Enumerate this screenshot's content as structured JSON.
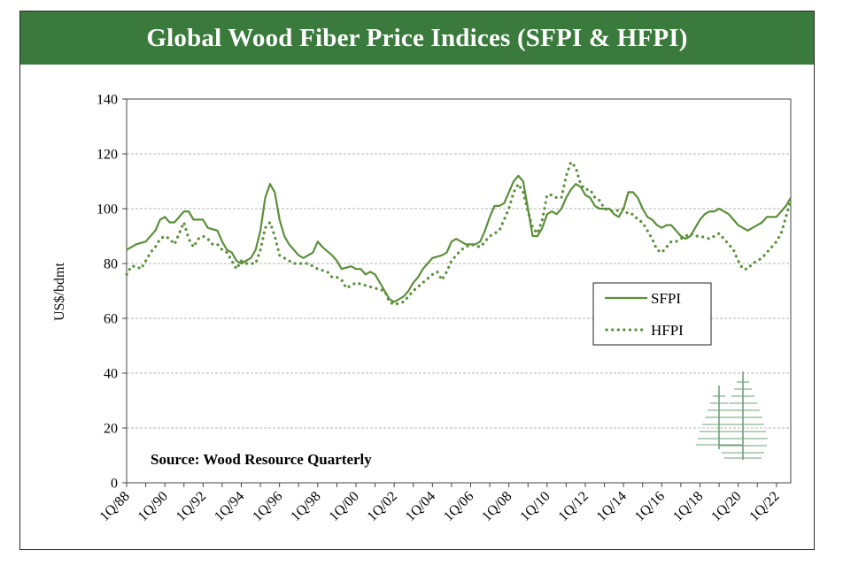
{
  "title": "Global Wood Fiber Price Indices (SFPI & HFPI)",
  "colors": {
    "title_bg": "#3a7a3c",
    "series": "#5b8f3a",
    "grid": "#b5b5b5"
  },
  "icon": "pine-trees-logo",
  "chart_data": {
    "type": "line",
    "ylabel": "US$/bdmt",
    "ylim": [
      0,
      140
    ],
    "yticks": [
      0,
      20,
      40,
      60,
      80,
      100,
      120,
      140
    ],
    "xlim": [
      1988.0,
      2022.75
    ],
    "xtick_labels": [
      "1Q/88",
      "1Q/90",
      "1Q/92",
      "1Q/94",
      "1Q/96",
      "1Q/98",
      "1Q/00",
      "1Q/02",
      "1Q/04",
      "1Q/06",
      "1Q/08",
      "1Q/10",
      "1Q/12",
      "1Q/14",
      "1Q/16",
      "1Q/18",
      "1Q/20",
      "1Q/22"
    ],
    "grid": "horizontal",
    "legend_position": "center-right",
    "annotation": "Source: Wood Resource Quarterly",
    "series": [
      {
        "name": "SFPI",
        "style": "solid",
        "points": [
          [
            1988.0,
            85
          ],
          [
            1988.5,
            87
          ],
          [
            1989.0,
            88
          ],
          [
            1989.5,
            92
          ],
          [
            1989.75,
            96
          ],
          [
            1990.0,
            97
          ],
          [
            1990.25,
            95
          ],
          [
            1990.5,
            95
          ],
          [
            1991.0,
            99
          ],
          [
            1991.25,
            99
          ],
          [
            1991.5,
            96
          ],
          [
            1992.0,
            96
          ],
          [
            1992.25,
            93
          ],
          [
            1992.75,
            92
          ],
          [
            1993.0,
            88
          ],
          [
            1993.25,
            85
          ],
          [
            1993.5,
            84
          ],
          [
            1993.75,
            81
          ],
          [
            1994.0,
            80
          ],
          [
            1994.5,
            82
          ],
          [
            1994.75,
            85
          ],
          [
            1995.0,
            92
          ],
          [
            1995.25,
            104
          ],
          [
            1995.5,
            109
          ],
          [
            1995.75,
            106
          ],
          [
            1996.0,
            96
          ],
          [
            1996.25,
            90
          ],
          [
            1996.5,
            87
          ],
          [
            1997.0,
            83
          ],
          [
            1997.25,
            82
          ],
          [
            1997.75,
            84
          ],
          [
            1998.0,
            88
          ],
          [
            1998.25,
            86
          ],
          [
            1998.75,
            83
          ],
          [
            1999.0,
            81
          ],
          [
            1999.25,
            78
          ],
          [
            1999.75,
            79
          ],
          [
            2000.0,
            78
          ],
          [
            2000.25,
            78
          ],
          [
            2000.5,
            76
          ],
          [
            2000.75,
            77
          ],
          [
            2001.0,
            76
          ],
          [
            2001.25,
            73
          ],
          [
            2001.5,
            70
          ],
          [
            2001.75,
            67
          ],
          [
            2002.0,
            66
          ],
          [
            2002.25,
            67
          ],
          [
            2002.5,
            68
          ],
          [
            2002.75,
            70
          ],
          [
            2003.0,
            73
          ],
          [
            2003.25,
            75
          ],
          [
            2003.5,
            78
          ],
          [
            2003.75,
            80
          ],
          [
            2004.0,
            82
          ],
          [
            2004.5,
            83
          ],
          [
            2004.75,
            84
          ],
          [
            2005.0,
            88
          ],
          [
            2005.25,
            89
          ],
          [
            2005.75,
            87
          ],
          [
            2006.0,
            87
          ],
          [
            2006.25,
            87
          ],
          [
            2006.5,
            88
          ],
          [
            2006.75,
            92
          ],
          [
            2007.0,
            97
          ],
          [
            2007.25,
            101
          ],
          [
            2007.5,
            101
          ],
          [
            2007.75,
            102
          ],
          [
            2008.0,
            106
          ],
          [
            2008.25,
            110
          ],
          [
            2008.5,
            112
          ],
          [
            2008.75,
            110
          ],
          [
            2009.0,
            100
          ],
          [
            2009.25,
            90
          ],
          [
            2009.5,
            90
          ],
          [
            2009.75,
            93
          ],
          [
            2010.0,
            98
          ],
          [
            2010.25,
            99
          ],
          [
            2010.5,
            98
          ],
          [
            2010.75,
            100
          ],
          [
            2011.0,
            104
          ],
          [
            2011.25,
            107
          ],
          [
            2011.5,
            109
          ],
          [
            2011.75,
            108
          ],
          [
            2012.0,
            105
          ],
          [
            2012.25,
            104
          ],
          [
            2012.5,
            101
          ],
          [
            2012.75,
            100
          ],
          [
            2013.0,
            100
          ],
          [
            2013.25,
            100
          ],
          [
            2013.5,
            98
          ],
          [
            2013.75,
            97
          ],
          [
            2014.0,
            100
          ],
          [
            2014.25,
            106
          ],
          [
            2014.5,
            106
          ],
          [
            2014.75,
            104
          ],
          [
            2015.0,
            100
          ],
          [
            2015.25,
            97
          ],
          [
            2015.5,
            96
          ],
          [
            2015.75,
            94
          ],
          [
            2016.0,
            93
          ],
          [
            2016.25,
            94
          ],
          [
            2016.5,
            94
          ],
          [
            2016.75,
            92
          ],
          [
            2017.0,
            90
          ],
          [
            2017.25,
            89
          ],
          [
            2017.5,
            90
          ],
          [
            2017.75,
            93
          ],
          [
            2018.0,
            96
          ],
          [
            2018.25,
            98
          ],
          [
            2018.5,
            99
          ],
          [
            2018.75,
            99
          ],
          [
            2019.0,
            100
          ],
          [
            2019.25,
            99
          ],
          [
            2019.5,
            98
          ],
          [
            2019.75,
            96
          ],
          [
            2020.0,
            94
          ],
          [
            2020.25,
            93
          ],
          [
            2020.5,
            92
          ],
          [
            2020.75,
            93
          ],
          [
            2021.0,
            94
          ],
          [
            2021.25,
            95
          ],
          [
            2021.5,
            97
          ],
          [
            2021.75,
            97
          ],
          [
            2022.0,
            97
          ],
          [
            2022.25,
            99
          ],
          [
            2022.5,
            101
          ],
          [
            2022.75,
            104
          ]
        ]
      },
      {
        "name": "HFPI",
        "style": "dotted",
        "points": [
          [
            1988.0,
            76
          ],
          [
            1988.25,
            79
          ],
          [
            1988.5,
            79
          ],
          [
            1988.75,
            78
          ],
          [
            1989.0,
            81
          ],
          [
            1989.25,
            84
          ],
          [
            1989.5,
            86
          ],
          [
            1989.75,
            89
          ],
          [
            1990.0,
            90
          ],
          [
            1990.25,
            89
          ],
          [
            1990.5,
            87
          ],
          [
            1990.75,
            91
          ],
          [
            1991.0,
            95
          ],
          [
            1991.25,
            89
          ],
          [
            1991.5,
            86
          ],
          [
            1991.75,
            89
          ],
          [
            1992.0,
            90
          ],
          [
            1992.25,
            89
          ],
          [
            1992.5,
            87
          ],
          [
            1992.75,
            87
          ],
          [
            1993.0,
            85
          ],
          [
            1993.25,
            84
          ],
          [
            1993.5,
            81
          ],
          [
            1993.75,
            78
          ],
          [
            1994.0,
            81
          ],
          [
            1994.25,
            80
          ],
          [
            1994.5,
            80
          ],
          [
            1994.75,
            80
          ],
          [
            1995.0,
            85
          ],
          [
            1995.25,
            93
          ],
          [
            1995.5,
            95
          ],
          [
            1995.75,
            90
          ],
          [
            1996.0,
            83
          ],
          [
            1996.25,
            82
          ],
          [
            1996.75,
            80
          ],
          [
            1997.0,
            80
          ],
          [
            1997.5,
            80
          ],
          [
            1998.0,
            78
          ],
          [
            1998.5,
            77
          ],
          [
            1998.75,
            75
          ],
          [
            1999.0,
            75
          ],
          [
            1999.25,
            74
          ],
          [
            1999.5,
            71
          ],
          [
            2000.0,
            73
          ],
          [
            2000.5,
            72
          ],
          [
            2001.0,
            71
          ],
          [
            2001.5,
            70
          ],
          [
            2001.75,
            66
          ],
          [
            2002.0,
            65
          ],
          [
            2002.5,
            66
          ],
          [
            2003.0,
            70
          ],
          [
            2003.5,
            73
          ],
          [
            2004.0,
            76
          ],
          [
            2004.25,
            77
          ],
          [
            2004.5,
            74
          ],
          [
            2004.75,
            77
          ],
          [
            2005.0,
            81
          ],
          [
            2005.5,
            85
          ],
          [
            2006.0,
            87
          ],
          [
            2006.5,
            86
          ],
          [
            2007.0,
            90
          ],
          [
            2007.5,
            92
          ],
          [
            2008.0,
            100
          ],
          [
            2008.25,
            106
          ],
          [
            2008.5,
            109
          ],
          [
            2008.75,
            106
          ],
          [
            2009.0,
            99
          ],
          [
            2009.25,
            93
          ],
          [
            2009.5,
            91
          ],
          [
            2009.75,
            96
          ],
          [
            2010.0,
            105
          ],
          [
            2010.25,
            105
          ],
          [
            2010.5,
            104
          ],
          [
            2010.75,
            104
          ],
          [
            2011.0,
            112
          ],
          [
            2011.25,
            117
          ],
          [
            2011.5,
            115
          ],
          [
            2011.75,
            109
          ],
          [
            2012.0,
            107
          ],
          [
            2012.25,
            107
          ],
          [
            2012.5,
            104
          ],
          [
            2012.75,
            103
          ],
          [
            2013.0,
            100
          ],
          [
            2013.5,
            99
          ],
          [
            2014.0,
            100
          ],
          [
            2014.25,
            98
          ],
          [
            2014.5,
            98
          ],
          [
            2014.75,
            96
          ],
          [
            2015.0,
            95
          ],
          [
            2015.25,
            92
          ],
          [
            2015.5,
            89
          ],
          [
            2015.75,
            85
          ],
          [
            2016.0,
            84
          ],
          [
            2016.25,
            86
          ],
          [
            2016.5,
            88
          ],
          [
            2016.75,
            88
          ],
          [
            2017.0,
            89
          ],
          [
            2017.5,
            91
          ],
          [
            2017.75,
            90
          ],
          [
            2018.0,
            90
          ],
          [
            2018.5,
            89
          ],
          [
            2018.75,
            90
          ],
          [
            2019.0,
            91
          ],
          [
            2019.25,
            89
          ],
          [
            2019.5,
            87
          ],
          [
            2019.75,
            85
          ],
          [
            2020.0,
            81
          ],
          [
            2020.25,
            78
          ],
          [
            2020.5,
            78
          ],
          [
            2020.75,
            80
          ],
          [
            2021.0,
            81
          ],
          [
            2021.25,
            82
          ],
          [
            2021.5,
            84
          ],
          [
            2021.75,
            86
          ],
          [
            2022.0,
            88
          ],
          [
            2022.25,
            91
          ],
          [
            2022.5,
            97
          ],
          [
            2022.75,
            103
          ]
        ]
      }
    ]
  }
}
